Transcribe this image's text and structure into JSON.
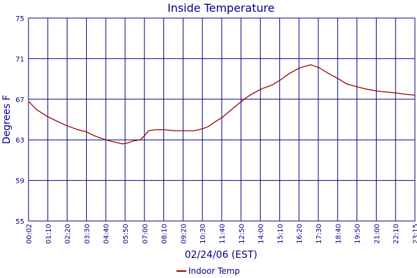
{
  "chart_data": {
    "type": "line",
    "title": "Inside Temperature",
    "xlabel": "02/24/06 (EST)",
    "ylabel": "Degrees F",
    "ylim": [
      55,
      75
    ],
    "yticks": [
      55,
      59,
      63,
      67,
      71,
      75
    ],
    "ytick_labels": [
      "55",
      "59",
      "63",
      "67",
      "71",
      "75"
    ],
    "xticks": [
      "00:02",
      "01:10",
      "02:20",
      "03:30",
      "04:40",
      "05:50",
      "07:00",
      "08:10",
      "09:20",
      "10:30",
      "11:40",
      "12:50",
      "14:00",
      "15:10",
      "16:20",
      "17:30",
      "18:40",
      "19:50",
      "21:00",
      "22:10",
      "23:15"
    ],
    "grid": true,
    "legend": "bottom-center",
    "colors": {
      "line": "#990000",
      "grid": "#000080",
      "text": "#000080"
    },
    "series": [
      {
        "name": "Indoor Temp",
        "points": [
          [
            "00:02",
            66.8
          ],
          [
            "00:30",
            66.0
          ],
          [
            "01:10",
            65.3
          ],
          [
            "01:40",
            64.9
          ],
          [
            "02:20",
            64.4
          ],
          [
            "03:00",
            64.0
          ],
          [
            "03:30",
            63.8
          ],
          [
            "04:00",
            63.4
          ],
          [
            "04:40",
            63.0
          ],
          [
            "05:10",
            62.8
          ],
          [
            "05:40",
            62.6
          ],
          [
            "06:00",
            62.7
          ],
          [
            "06:20",
            62.9
          ],
          [
            "06:45",
            63.0
          ],
          [
            "07:00",
            63.4
          ],
          [
            "07:15",
            63.9
          ],
          [
            "07:40",
            64.0
          ],
          [
            "08:10",
            64.0
          ],
          [
            "08:50",
            63.9
          ],
          [
            "09:20",
            63.9
          ],
          [
            "10:00",
            63.9
          ],
          [
            "10:30",
            64.1
          ],
          [
            "10:50",
            64.3
          ],
          [
            "11:10",
            64.7
          ],
          [
            "11:40",
            65.2
          ],
          [
            "12:10",
            65.9
          ],
          [
            "12:50",
            66.8
          ],
          [
            "13:20",
            67.4
          ],
          [
            "14:00",
            68.0
          ],
          [
            "14:40",
            68.4
          ],
          [
            "15:10",
            68.9
          ],
          [
            "15:40",
            69.5
          ],
          [
            "16:20",
            70.1
          ],
          [
            "17:00",
            70.4
          ],
          [
            "17:30",
            70.1
          ],
          [
            "18:00",
            69.6
          ],
          [
            "18:40",
            69.0
          ],
          [
            "19:10",
            68.5
          ],
          [
            "19:50",
            68.2
          ],
          [
            "20:20",
            68.0
          ],
          [
            "21:00",
            67.8
          ],
          [
            "21:40",
            67.7
          ],
          [
            "22:10",
            67.6
          ],
          [
            "22:40",
            67.5
          ],
          [
            "23:15",
            67.4
          ]
        ]
      }
    ]
  }
}
